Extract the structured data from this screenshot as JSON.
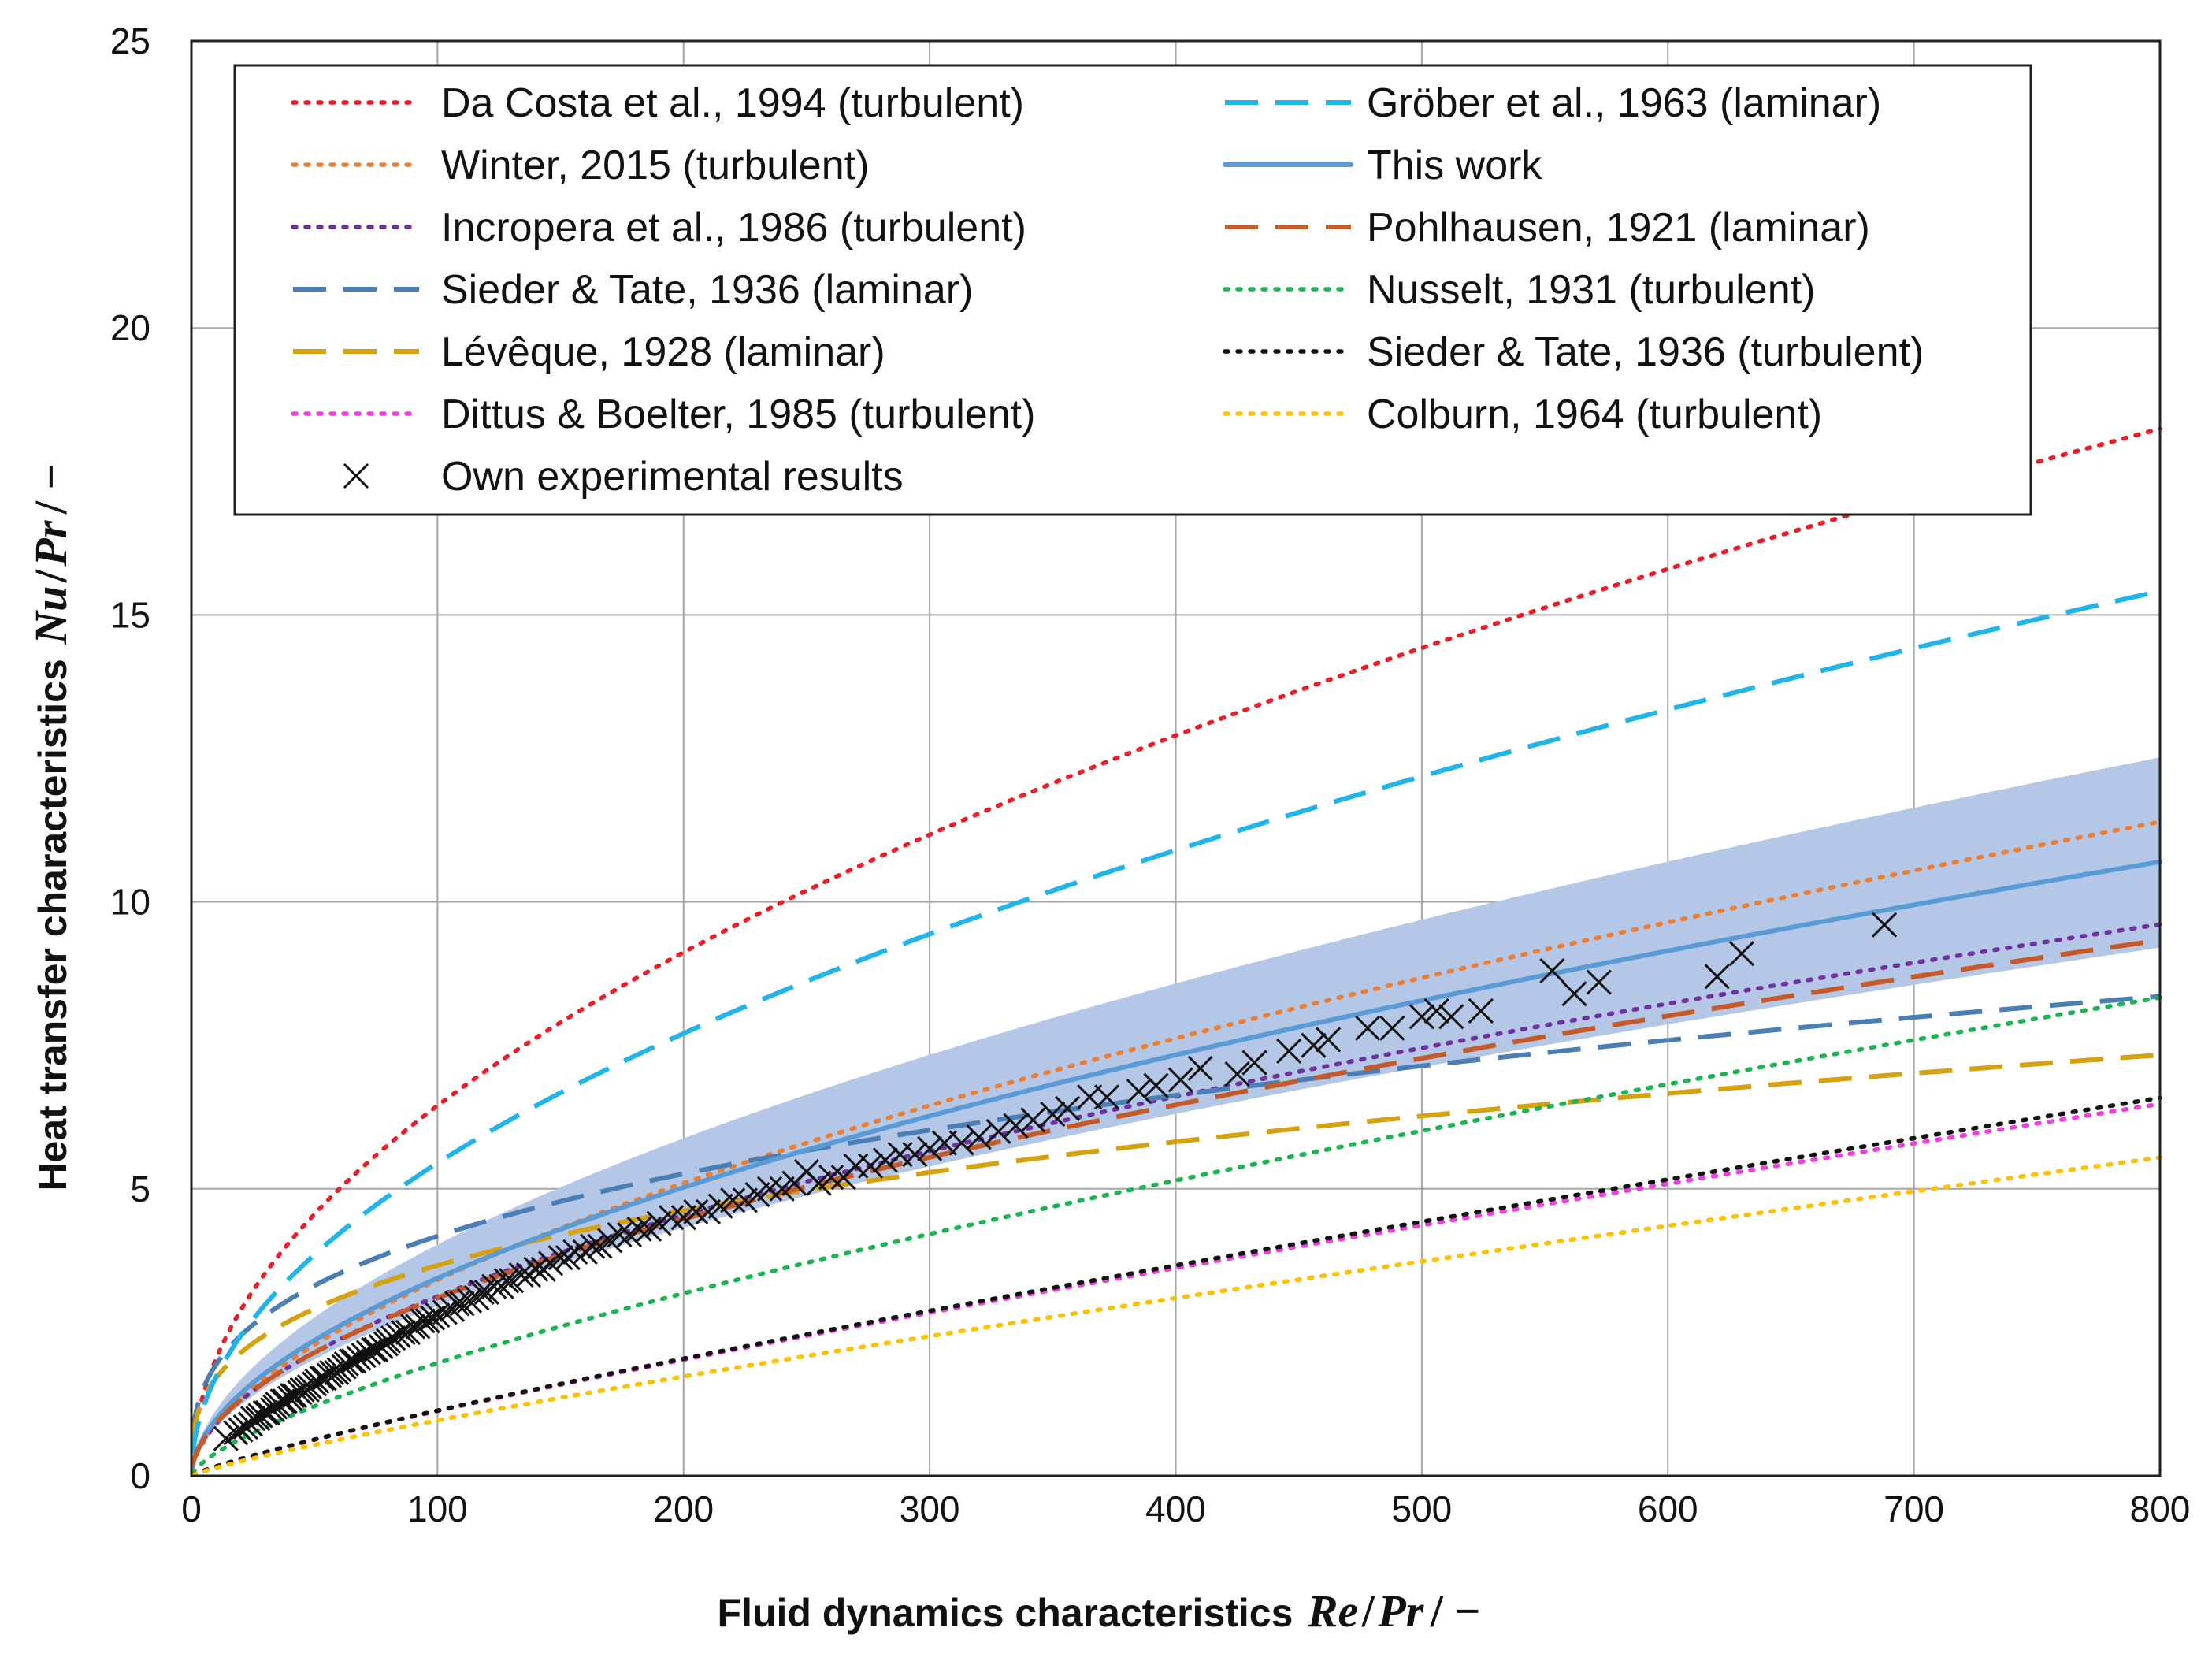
{
  "chart_data": {
    "type": "line",
    "xlabel": "Fluid dynamics characteristics",
    "ylabel": "Heat transfer characteristics",
    "xlabel_symbol": {
      "num": "Re",
      "den": "Pr",
      "tail": "/ −"
    },
    "ylabel_symbol": {
      "num": "Nu",
      "den": "Pr",
      "tail": "/ −"
    },
    "xlim": [
      0,
      800
    ],
    "ylim": [
      0,
      25
    ],
    "xticks": [
      0,
      100,
      200,
      300,
      400,
      500,
      600,
      700,
      800
    ],
    "yticks": [
      0,
      5,
      10,
      15,
      20,
      25
    ],
    "grid": true,
    "legend_position": "top",
    "series": [
      {
        "name": "Da Costa et al., 1994 (turbulent)",
        "color": "#ee1c25",
        "style": "dotted",
        "coef": 0.645,
        "exp": 0.5
      },
      {
        "name": "Winter, 2015 (turbulent)",
        "color": "#ed7d31",
        "style": "dotted",
        "coef": 0.236,
        "exp": 0.58
      },
      {
        "name": "Incropera et al., 1986 (turbulent)",
        "color": "#7030a0",
        "style": "dotted",
        "coef": 0.26,
        "exp": 0.54
      },
      {
        "name": "Sieder & Tate, 1936 (laminar)",
        "color": "#4a7eb5",
        "style": "dashed",
        "coef": 0.9,
        "exp": 0.3333
      },
      {
        "name": "Lévêque, 1928 (laminar)",
        "color": "#d6a10e",
        "style": "dashed",
        "coef": 0.79,
        "exp": 0.3333
      },
      {
        "name": "Dittus & Boelter, 1985 (turbulent)",
        "color": "#f23ee0",
        "style": "dotted",
        "coef": 0.0236,
        "exp": 0.84
      },
      {
        "name": "Gröber et al., 1963 (laminar)",
        "color": "#1fb5ea",
        "style": "dashed",
        "coef": 0.545,
        "exp": 0.5
      },
      {
        "name": "This work",
        "color": "#5b9bd5",
        "style": "solid",
        "coef": 0.28,
        "exp": 0.545,
        "band": [
          0.86,
          1.17
        ],
        "band_color": "#b4c7e7"
      },
      {
        "name": "Pohlhausen, 1921 (laminar)",
        "color": "#c55a28",
        "style": "dashed",
        "coef": 0.27,
        "exp": 0.53
      },
      {
        "name": "Nusselt, 1931 (turbulent)",
        "color": "#1ab552",
        "style": "dotted",
        "coef": 0.08,
        "exp": 0.695
      },
      {
        "name": "Sieder & Tate, 1936 (turbulent)",
        "color": "#111111",
        "style": "dotted",
        "coef": 0.0232,
        "exp": 0.845
      },
      {
        "name": "Colburn, 1964 (turbulent)",
        "color": "#ffc000",
        "style": "dotted",
        "coef": 0.0202,
        "exp": 0.84
      }
    ],
    "experimental": {
      "name": "Own experimental results",
      "marker": "x",
      "color": "#111111",
      "x": [
        14,
        18,
        20,
        22,
        24,
        25,
        27,
        28,
        30,
        31,
        33,
        34,
        35,
        37,
        38,
        40,
        41,
        42,
        44,
        45,
        47,
        48,
        50,
        51,
        53,
        54,
        56,
        57,
        59,
        60,
        62,
        63,
        65,
        66,
        68,
        70,
        72,
        74,
        75,
        77,
        79,
        80,
        82,
        84,
        86,
        88,
        90,
        92,
        94,
        96,
        98,
        100,
        103,
        106,
        108,
        110,
        113,
        116,
        118,
        120,
        123,
        126,
        128,
        130,
        134,
        137,
        140,
        143,
        146,
        150,
        153,
        156,
        160,
        163,
        166,
        170,
        174,
        178,
        182,
        186,
        190,
        195,
        200,
        205,
        210,
        215,
        220,
        225,
        230,
        235,
        240,
        245,
        250,
        255,
        260,
        265,
        270,
        276,
        282,
        288,
        294,
        300,
        306,
        313,
        320,
        328,
        335,
        342,
        350,
        356,
        365,
        372,
        385,
        392,
        402,
        410,
        425,
        432,
        446,
        456,
        462,
        478,
        488,
        500,
        506,
        512,
        524,
        553,
        562,
        572,
        620,
        630,
        688
      ],
      "y": [
        0.65,
        0.75,
        0.8,
        0.85,
        0.9,
        1.0,
        1.0,
        1.05,
        1.1,
        1.1,
        1.15,
        1.2,
        1.25,
        1.3,
        1.3,
        1.35,
        1.4,
        1.4,
        1.45,
        1.5,
        1.5,
        1.55,
        1.6,
        1.65,
        1.7,
        1.7,
        1.75,
        1.8,
        1.8,
        1.85,
        1.9,
        1.95,
        2.0,
        2.0,
        2.05,
        2.1,
        2.15,
        2.2,
        2.2,
        2.25,
        2.3,
        2.35,
        2.4,
        2.45,
        2.5,
        2.5,
        2.6,
        2.6,
        2.7,
        2.7,
        2.75,
        2.8,
        2.85,
        2.9,
        3.0,
        3.0,
        3.05,
        3.1,
        3.2,
        3.2,
        3.3,
        3.3,
        3.4,
        3.4,
        3.5,
        3.5,
        3.6,
        3.6,
        3.7,
        3.8,
        3.8,
        3.9,
        3.9,
        4.0,
        4.0,
        4.1,
        4.2,
        4.2,
        4.3,
        4.3,
        4.4,
        4.5,
        4.5,
        4.6,
        4.6,
        4.7,
        4.8,
        4.8,
        4.9,
        5.0,
        5.0,
        5.1,
        5.3,
        5.1,
        5.2,
        5.2,
        5.4,
        5.4,
        5.5,
        5.6,
        5.6,
        5.7,
        5.8,
        5.8,
        5.9,
        6.0,
        6.1,
        6.2,
        6.3,
        6.4,
        6.6,
        6.6,
        6.7,
        6.8,
        6.9,
        7.1,
        7.0,
        7.2,
        7.4,
        7.5,
        7.6,
        7.8,
        7.8,
        8.0,
        8.1,
        8.0,
        8.1,
        8.8,
        8.4,
        8.6,
        8.7,
        9.1,
        9.6
      ]
    }
  }
}
